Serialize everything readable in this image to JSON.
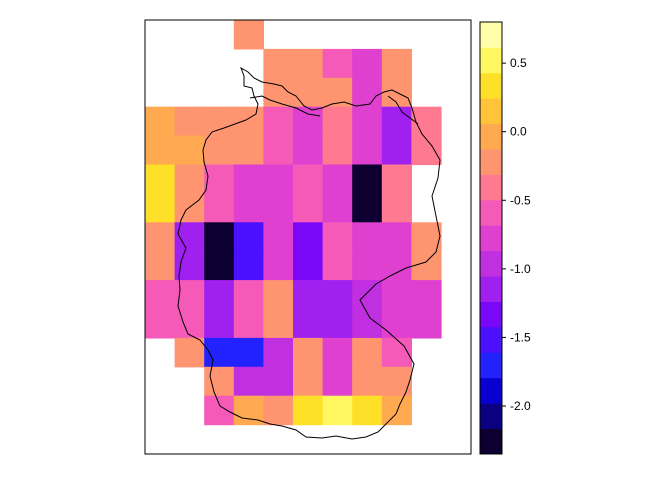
{
  "map": {
    "type": "raster-heatmap",
    "region_outline": "germany-border",
    "rows": 14,
    "cols": 10,
    "cells": [
      [
        null,
        null,
        null,
        -0.3,
        null,
        null,
        null,
        null,
        null,
        null
      ],
      [
        null,
        null,
        null,
        null,
        -0.3,
        -0.3,
        -0.5,
        -0.8,
        -0.2,
        null
      ],
      [
        null,
        null,
        null,
        null,
        -0.3,
        -0.3,
        -0.3,
        -0.8,
        -0.3,
        null
      ],
      [
        -0.1,
        -0.2,
        -0.2,
        -0.3,
        -0.6,
        -0.7,
        -0.4,
        -0.8,
        -1.1,
        -0.4
      ],
      [
        -0.1,
        -0.1,
        -0.2,
        -0.3,
        -0.6,
        -0.7,
        -0.4,
        -0.8,
        -1.1,
        -0.4
      ],
      [
        0.4,
        -0.3,
        -0.5,
        -0.8,
        -0.8,
        -0.6,
        -0.7,
        -2.3,
        -0.4,
        null
      ],
      [
        0.4,
        -0.3,
        -0.5,
        -0.8,
        -0.8,
        -0.6,
        -0.7,
        -2.3,
        -0.4,
        null
      ],
      [
        -0.2,
        -1.1,
        -2.3,
        -1.6,
        -0.7,
        -1.3,
        -0.6,
        -0.8,
        -0.8,
        -0.2
      ],
      [
        -0.2,
        -1.1,
        -2.3,
        -1.6,
        -0.7,
        -1.3,
        -0.6,
        -0.8,
        -0.8,
        -0.2
      ],
      [
        -0.6,
        -0.5,
        -1.1,
        -0.5,
        -0.3,
        -1.2,
        -1.2,
        -1.0,
        -0.7,
        -0.8
      ],
      [
        -0.6,
        -0.5,
        -1.1,
        -0.5,
        -0.3,
        -1.2,
        -1.2,
        -1.0,
        -0.7,
        -0.8
      ],
      [
        null,
        -0.3,
        -1.7,
        -1.7,
        -1.0,
        -0.3,
        -0.8,
        -0.3,
        -0.6,
        null
      ],
      [
        null,
        null,
        -0.3,
        -0.9,
        -1.0,
        -0.3,
        -0.8,
        -0.3,
        -0.3,
        null
      ],
      [
        null,
        null,
        -0.6,
        -0.1,
        -0.2,
        0.4,
        0.6,
        0.3,
        -0.1,
        null
      ]
    ]
  },
  "legend": {
    "min": -2.35,
    "max": 0.8,
    "ticks": [
      {
        "value": 0.5,
        "label": "0.5"
      },
      {
        "value": 0.0,
        "label": "0.0"
      },
      {
        "value": -0.5,
        "label": "-0.5"
      },
      {
        "value": -1.0,
        "label": "-1.0"
      },
      {
        "value": -1.5,
        "label": "-1.5"
      },
      {
        "value": -2.0,
        "label": "-2.0"
      }
    ],
    "colors": [
      "#0D0030",
      "#0A0082",
      "#0800D0",
      "#2222FF",
      "#4A10FF",
      "#7A08F8",
      "#A020F0",
      "#C030E0",
      "#E040D0",
      "#F55AB8",
      "#FF7A90",
      "#FF9570",
      "#FFAA50",
      "#FFC43A",
      "#FFE028",
      "#FFF860",
      "#FFFFAA"
    ]
  }
}
